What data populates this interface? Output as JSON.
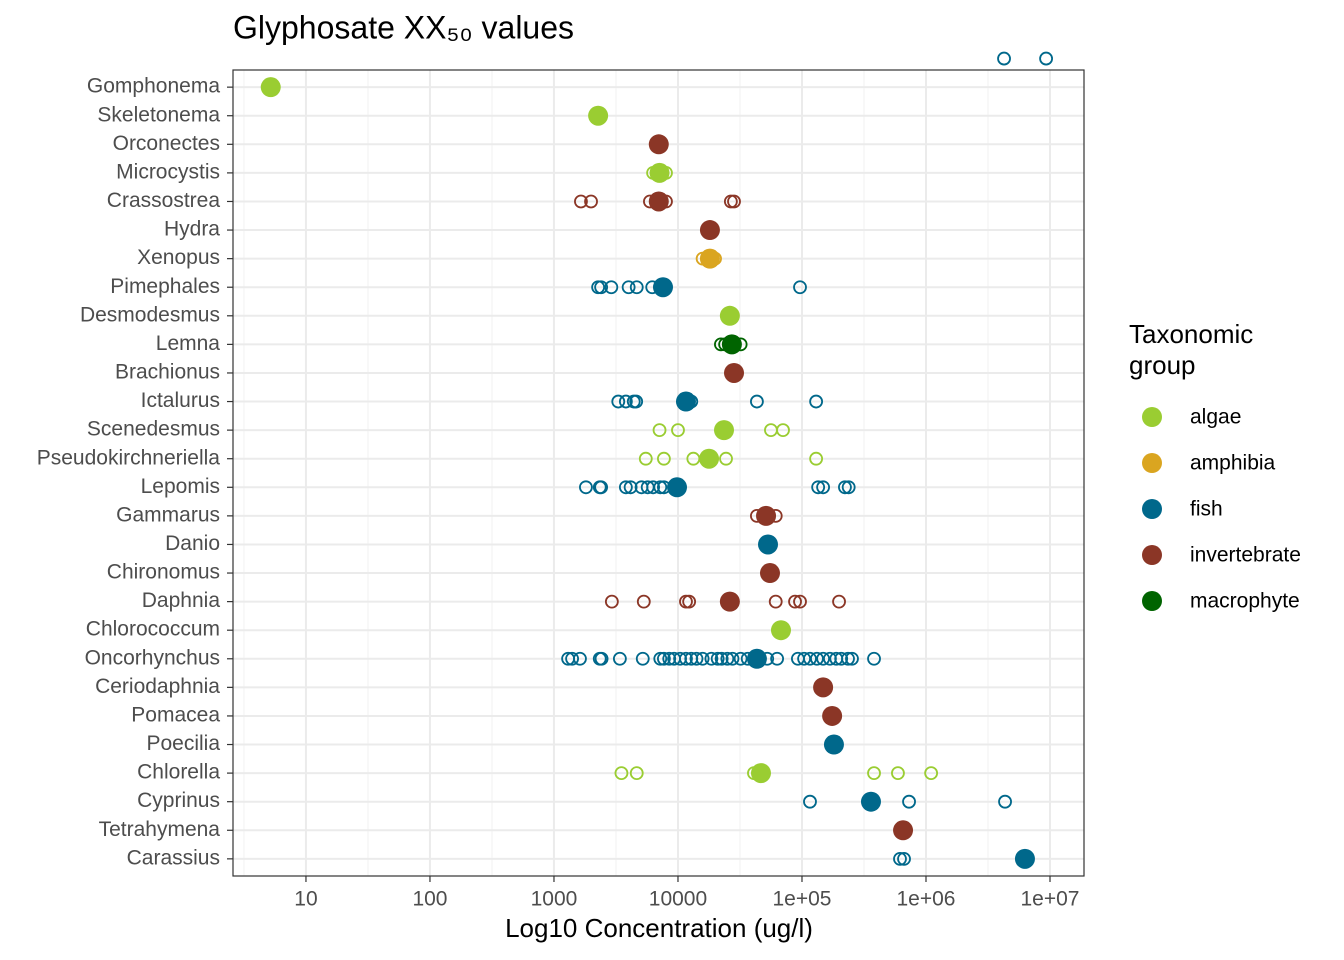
{
  "chart_data": {
    "type": "scatter",
    "title": "Glyphosate  XX₅₀  values",
    "x_label": "Log10 Concentration (ug/l)",
    "legend_title": [
      "Taxonomic",
      "group"
    ],
    "legend": "right",
    "log_x": true,
    "grid": true,
    "xlim": [
      2.58,
      18800000
    ],
    "xticks": [
      10,
      100,
      1000,
      10000,
      {
        "value": 100000,
        "label": "1e+05"
      },
      {
        "value": 1000000,
        "label": "1e+06"
      },
      {
        "value": 10000000,
        "label": "1e+07"
      }
    ],
    "categories": [
      "Gomphonema",
      "Skeletonema",
      "Orconectes",
      "Microcystis",
      "Crassostrea",
      "Hydra",
      "Xenopus",
      "Pimephales",
      "Desmodesmus",
      "Lemna",
      "Brachionus",
      "Ictalurus",
      "Scenedesmus",
      "Pseudokirchneriella",
      "Lepomis",
      "Gammarus",
      "Danio",
      "Chironomus",
      "Daphnia",
      "Chlorococcum",
      "Oncorhynchus",
      "Ceriodaphnia",
      "Pomacea",
      "Poecilia",
      "Chlorella",
      "Cyprinus",
      "Tetrahymena",
      "Carassius"
    ],
    "series": [
      {
        "name": "algae",
        "color": "#9acd32",
        "y": [
          "Gomphonema",
          "Skeletonema",
          "Microcystis",
          "Desmodesmus",
          "Scenedesmus",
          "Pseudokirchneriella",
          "Chlorococcum",
          "Chlorella"
        ],
        "x": [
          5.2,
          2270,
          7100,
          26200,
          23500,
          17800,
          67700,
          46700
        ],
        "open_y": [
          "Microcystis",
          "Microcystis",
          "Scenedesmus",
          "Scenedesmus",
          "Scenedesmus",
          "Scenedesmus",
          "Pseudokirchneriella",
          "Pseudokirchneriella",
          "Pseudokirchneriella",
          "Pseudokirchneriella",
          "Pseudokirchneriella",
          "Chlorella",
          "Chlorella",
          "Chlorella",
          "Chlorella",
          "Chlorella",
          "Chlorella"
        ],
        "open_x": [
          6300,
          8000,
          7100,
          10000,
          56200,
          70300,
          5500,
          7700,
          13300,
          24400,
          130000,
          3500,
          4650,
          41000,
          381000,
          594000,
          1100000
        ]
      },
      {
        "name": "amphibia",
        "color": "#daa520",
        "y": [
          "Xenopus"
        ],
        "x": [
          18100
        ],
        "open_y": [
          "Xenopus",
          "Xenopus"
        ],
        "open_x": [
          15800,
          19900
        ]
      },
      {
        "name": "fish",
        "color": "#00688b",
        "y": [
          "Pimephales",
          "Ictalurus",
          "Lepomis",
          "Danio",
          "Oncorhynchus",
          "Poecilia",
          "Cyprinus",
          "Carassius"
        ],
        "x": [
          7570,
          11600,
          9820,
          53200,
          43300,
          181000,
          360000,
          6280000
        ],
        "open_y": [
          "Pimephales",
          "Pimephales",
          "Pimephales",
          "Pimephales",
          "Pimephales",
          "Pimephales",
          "Pimephales",
          "Ictalurus",
          "Ictalurus",
          "Ictalurus",
          "Ictalurus",
          "Ictalurus",
          "Ictalurus",
          "Ictalurus",
          "Lepomis",
          "Lepomis",
          "Lepomis",
          "Lepomis",
          "Lepomis",
          "Lepomis",
          "Lepomis",
          "Lepomis",
          "Lepomis",
          "Lepomis",
          "Lepomis",
          "Lepomis",
          "Lepomis",
          "Lepomis",
          "Oncorhynchus",
          "Oncorhynchus",
          "Oncorhynchus",
          "Oncorhynchus",
          "Oncorhynchus",
          "Oncorhynchus",
          "Oncorhynchus",
          "Oncorhynchus",
          "Oncorhynchus",
          "Oncorhynchus",
          "Oncorhynchus",
          "Oncorhynchus",
          "Oncorhynchus",
          "Oncorhynchus",
          "Oncorhynchus",
          "Oncorhynchus",
          "Oncorhynchus",
          "Oncorhynchus",
          "Oncorhynchus",
          "Oncorhynchus",
          "Oncorhynchus",
          "Oncorhynchus",
          "Oncorhynchus",
          "Oncorhynchus",
          "Oncorhynchus",
          "Oncorhynchus",
          "Oncorhynchus",
          "Oncorhynchus",
          "Oncorhynchus",
          "Oncorhynchus",
          "Oncorhynchus",
          "Oncorhynchus",
          "Oncorhynchus",
          "Oncorhynchus",
          "Oncorhynchus",
          "Oncorhynchus",
          "Oncorhynchus",
          "Cyprinus",
          "Cyprinus",
          "Cyprinus",
          "Carassius",
          "Carassius"
        ],
        "open_x": [
          2270,
          2400,
          2900,
          4000,
          4650,
          6200,
          96400,
          3300,
          3800,
          4400,
          4600,
          12800,
          43300,
          130000,
          1810,
          2340,
          2400,
          3800,
          4150,
          5080,
          5700,
          6300,
          7200,
          7700,
          135000,
          148000,
          222000,
          238000,
          1300,
          1400,
          1620,
          2340,
          2420,
          3400,
          5200,
          7200,
          7700,
          8500,
          9300,
          10400,
          11600,
          12800,
          14100,
          15800,
          18600,
          20900,
          22500,
          25000,
          27500,
          32000,
          36500,
          41700,
          52400,
          63000,
          92700,
          104000,
          116000,
          132000,
          148000,
          168000,
          189000,
          207000,
          235000,
          253000,
          381000,
          730000,
          4340000,
          116000,
          617000,
          665000,
          4260000,
          9300000
        ]
      },
      {
        "name": "invertebrate",
        "color": "#8b3626",
        "y": [
          "Orconectes",
          "Crassostrea",
          "Hydra",
          "Brachionus",
          "Gammarus",
          "Chironomus",
          "Daphnia",
          "Ceriodaphnia",
          "Pomacea",
          "Tetrahymena"
        ],
        "x": [
          7000,
          7000,
          18100,
          28300,
          51300,
          55200,
          26200,
          148000,
          175000,
          653000
        ],
        "open_y": [
          "Crassostrea",
          "Crassostrea",
          "Crassostrea",
          "Crassostrea",
          "Crassostrea",
          "Crassostrea",
          "Gammarus",
          "Gammarus",
          "Daphnia",
          "Daphnia",
          "Daphnia",
          "Daphnia",
          "Daphnia",
          "Daphnia",
          "Daphnia",
          "Daphnia"
        ],
        "open_x": [
          1650,
          1990,
          5940,
          8000,
          26700,
          28300,
          43300,
          61400,
          2930,
          5300,
          11600,
          12300,
          61400,
          87900,
          96400,
          199000
        ]
      },
      {
        "name": "macrophyte",
        "color": "#006400",
        "y": [
          "Lemna"
        ],
        "x": [
          27200
        ],
        "open_y": [
          "Lemna",
          "Lemna",
          "Lemna"
        ],
        "open_x": [
          22200,
          24000,
          32000
        ]
      }
    ]
  }
}
